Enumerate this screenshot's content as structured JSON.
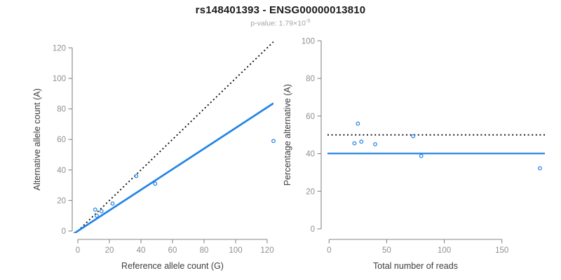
{
  "header": {
    "title": "rs148401393 - ENSG00000013810",
    "pvalue_prefix": "p-value: 1.79×10",
    "pvalue_exponent": "-5"
  },
  "colors": {
    "accent_blue": "#2484e4",
    "dotted_black": "#111111",
    "axis_line": "#878787",
    "tick_label": "#8f8f8f",
    "axis_title": "#3d3d3d",
    "title": "#1b1b1b",
    "subtitle": "#a3a3a3"
  },
  "chart_data": [
    {
      "id": "allele-count-scatter",
      "type": "scatter",
      "xlabel": "Reference allele count (G)",
      "ylabel": "Alternative allele count (A)",
      "xticks": [
        0,
        20,
        40,
        60,
        80,
        100,
        120
      ],
      "yticks": [
        0,
        20,
        40,
        60,
        80,
        100,
        120
      ],
      "xlim": [
        0,
        124
      ],
      "ylim": [
        0,
        126
      ],
      "grid": false,
      "points": [
        [
          11,
          14
        ],
        [
          12,
          10
        ],
        [
          15,
          13
        ],
        [
          22,
          18
        ],
        [
          37,
          36
        ],
        [
          49,
          31
        ],
        [
          124,
          59
        ]
      ],
      "lines": [
        {
          "name": "identity-line",
          "style": "dotted",
          "color": "black",
          "slope": 1,
          "intercept": 0
        },
        {
          "name": "fit-line",
          "style": "solid",
          "color": "blue",
          "slope": 0.675,
          "intercept": 0
        }
      ]
    },
    {
      "id": "percentage-vs-reads-scatter",
      "type": "scatter",
      "xlabel": "Total number of reads",
      "ylabel": "Percentage alternative (A)",
      "xticks": [
        0,
        50,
        100,
        150
      ],
      "yticks": [
        0,
        20,
        40,
        60,
        80,
        100
      ],
      "xlim": [
        0,
        188
      ],
      "ylim": [
        0,
        100
      ],
      "grid": false,
      "points": [
        [
          25,
          56
        ],
        [
          22,
          45.5
        ],
        [
          28,
          46.4
        ],
        [
          40,
          45
        ],
        [
          73,
          49.3
        ],
        [
          80,
          38.8
        ],
        [
          183,
          32.2
        ]
      ],
      "lines": [
        {
          "name": "expected-50-line",
          "style": "dotted",
          "color": "black",
          "y": 50
        },
        {
          "name": "mean-percentage-line",
          "style": "solid",
          "color": "blue",
          "y": 40.1
        }
      ]
    }
  ]
}
